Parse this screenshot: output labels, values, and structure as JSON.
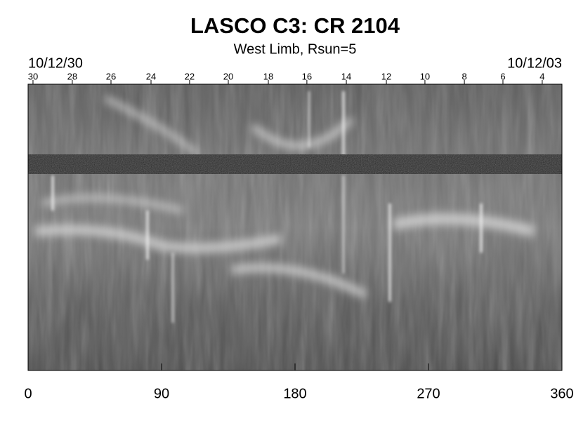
{
  "chart_data": {
    "type": "image",
    "title": "LASCO C3: CR 2104",
    "subtitle": "West Limb, Rsun=5",
    "start_label": "10/12/30",
    "end_label": "10/12/03",
    "xlim": [
      0,
      360
    ],
    "xticks": [
      0,
      90,
      180,
      270,
      360
    ],
    "top_ticks": [
      {
        "value": 3.3,
        "label": "30"
      },
      {
        "value": 29.8,
        "label": "28"
      },
      {
        "value": 55.9,
        "label": "26"
      },
      {
        "value": 82.9,
        "label": "24"
      },
      {
        "value": 108.9,
        "label": "22"
      },
      {
        "value": 135,
        "label": "20"
      },
      {
        "value": 162,
        "label": "18"
      },
      {
        "value": 188,
        "label": "16"
      },
      {
        "value": 214.6,
        "label": "14"
      },
      {
        "value": 241.6,
        "label": "12"
      },
      {
        "value": 267.6,
        "label": "10"
      },
      {
        "value": 294.2,
        "label": "8"
      },
      {
        "value": 320.2,
        "label": "6"
      },
      {
        "value": 346.7,
        "label": "4"
      }
    ]
  }
}
